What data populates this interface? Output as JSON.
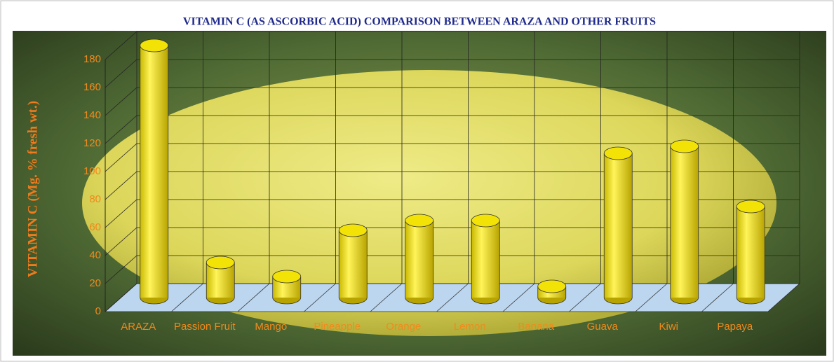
{
  "chart_data": {
    "type": "bar",
    "title": "VITAMIN C (AS ASCORBIC ACID) COMPARISON BETWEEN ARAZA AND OTHER FRUITS",
    "y_label": "VITAMIN C (Mg. % fresh wt.)",
    "categories": [
      "ARAZA",
      "Passion Fruit",
      "Mango",
      "Pineapple",
      "Orange",
      "Lemon",
      "Banana",
      "Guava",
      "Kiwi",
      "Papaya"
    ],
    "values": [
      180,
      25,
      15,
      48,
      55,
      55,
      8,
      103,
      108,
      65
    ],
    "color": "#f2e205",
    "ylim": [
      0,
      180
    ],
    "yticks": [
      0,
      20,
      40,
      60,
      80,
      100,
      120,
      140,
      160,
      180
    ],
    "grid": true
  }
}
